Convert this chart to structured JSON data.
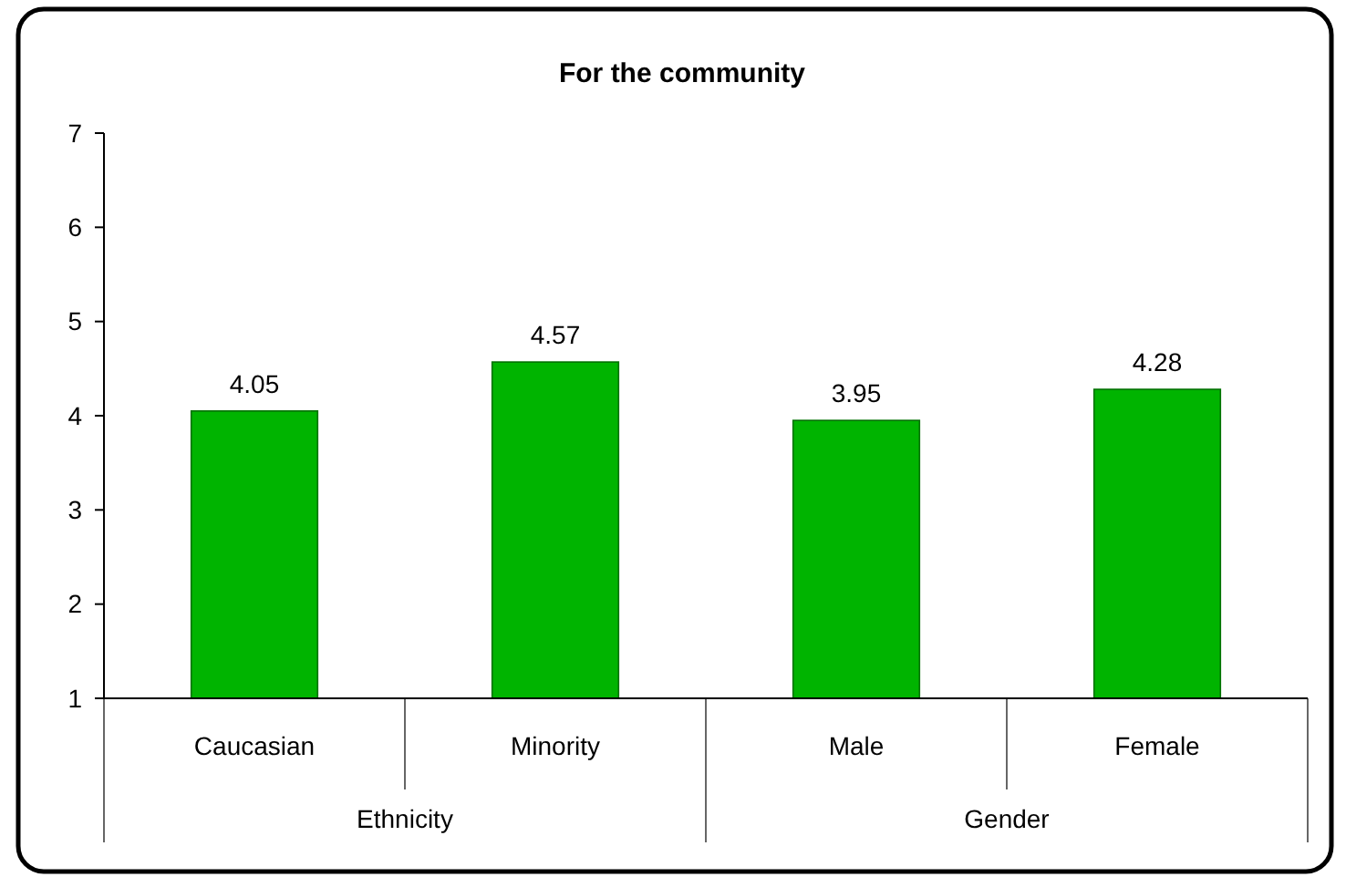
{
  "chart_data": {
    "type": "bar",
    "title": "For the community",
    "categories": [
      "Caucasian",
      "Minority",
      "Male",
      "Female"
    ],
    "values": [
      4.05,
      4.57,
      3.95,
      4.28
    ],
    "color": "#00b400",
    "ylim": [
      1,
      7
    ],
    "yticks": [
      1,
      2,
      3,
      4,
      5,
      6,
      7
    ],
    "grid": false,
    "data_labels": true,
    "annotations": [
      "Ethnicity",
      "Gender"
    ]
  }
}
